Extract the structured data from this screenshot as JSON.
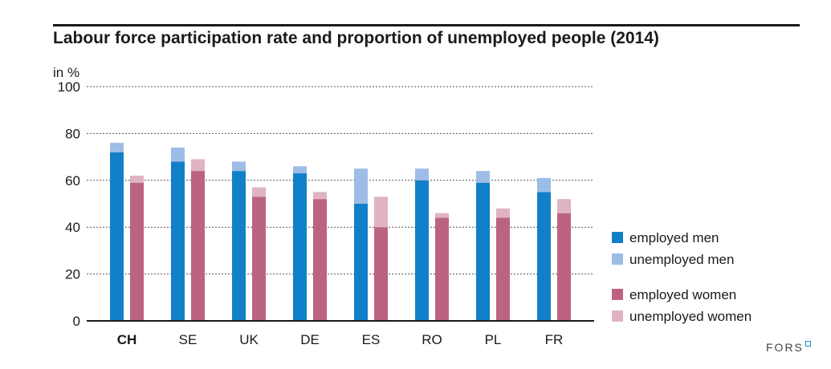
{
  "chart_data": {
    "type": "bar",
    "stacked": true,
    "title": "Labour force participation rate and proportion of unemployed people (2014)",
    "ylabel": "in %",
    "ylim": [
      0,
      100
    ],
    "yticks": [
      0,
      20,
      40,
      60,
      80,
      100
    ],
    "grid": true,
    "legend_position": "right",
    "categories": [
      "CH",
      "SE",
      "UK",
      "DE",
      "ES",
      "RO",
      "PL",
      "FR"
    ],
    "highlighted_category": "CH",
    "groups": [
      {
        "name": "men",
        "series": [
          {
            "name": "employed men",
            "color": "#1180c8",
            "values": [
              72,
              68,
              64,
              63,
              50,
              60,
              59,
              55
            ]
          },
          {
            "name": "unemployed men",
            "color": "#9ebde6",
            "values": [
              4,
              6,
              4,
              3,
              15,
              5,
              5,
              6
            ]
          }
        ]
      },
      {
        "name": "women",
        "series": [
          {
            "name": "employed women",
            "color": "#bc6382",
            "values": [
              59,
              64,
              53,
              52,
              40,
              44,
              44,
              46
            ]
          },
          {
            "name": "unemployed women",
            "color": "#e0b3c3",
            "values": [
              3,
              5,
              4,
              3,
              13,
              2,
              4,
              6
            ]
          }
        ]
      }
    ]
  },
  "logo_text": "FORS"
}
